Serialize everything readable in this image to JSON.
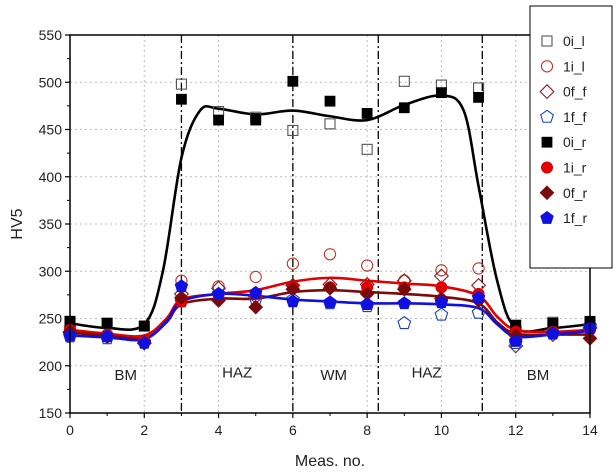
{
  "chart_data": {
    "type": "scatter",
    "title": "",
    "xlabel": "Meas. no.",
    "ylabel": "HV5",
    "xlim": [
      0,
      14
    ],
    "ylim": [
      150,
      550
    ],
    "xticks": [
      0,
      2,
      4,
      6,
      8,
      10,
      12,
      14
    ],
    "yticks": [
      150,
      200,
      250,
      300,
      350,
      400,
      450,
      500,
      550
    ],
    "grid": true,
    "legend_position": "top-right",
    "zone_boundaries": [
      3,
      6,
      8.3,
      11.1
    ],
    "zones": [
      {
        "label": "BM",
        "x": 1.5,
        "y": 190
      },
      {
        "label": "HAZ",
        "x": 4.5,
        "y": 193
      },
      {
        "label": "WM",
        "x": 7.1,
        "y": 190
      },
      {
        "label": "HAZ",
        "x": 9.6,
        "y": 193
      },
      {
        "label": "BM",
        "x": 12.6,
        "y": 190
      }
    ],
    "series": [
      {
        "name": "0i_l",
        "marker": "square",
        "filled": false,
        "color": "#555555",
        "x": [
          0,
          1,
          2,
          3,
          4,
          5,
          6,
          7,
          8,
          9,
          10,
          11,
          12,
          13,
          14
        ],
        "y": [
          247,
          245,
          242,
          498,
          469,
          463,
          449,
          456,
          429,
          501,
          497,
          494,
          242,
          246,
          246
        ]
      },
      {
        "name": "1i_l",
        "marker": "circle",
        "filled": false,
        "color": "#c0392b",
        "x": [
          0,
          1,
          2,
          3,
          4,
          5,
          6,
          7,
          8,
          9,
          10,
          11,
          12,
          13,
          14
        ],
        "y": [
          240,
          232,
          226,
          290,
          284,
          294,
          308,
          318,
          306,
          290,
          301,
          303,
          240,
          237,
          243
        ]
      },
      {
        "name": "0f_f",
        "marker": "diamond",
        "filled": false,
        "color": "#8b1a1a",
        "x": [
          0,
          1,
          2,
          3,
          4,
          5,
          6,
          7,
          8,
          9,
          10,
          11,
          12,
          13,
          14
        ],
        "y": [
          235,
          231,
          224,
          276,
          282,
          273,
          285,
          286,
          286,
          290,
          295,
          285,
          221,
          233,
          240
        ]
      },
      {
        "name": "1f_f",
        "marker": "pentagon",
        "filled": false,
        "color": "#1f3fbf",
        "x": [
          0,
          1,
          2,
          3,
          4,
          5,
          6,
          7,
          8,
          9,
          10,
          11,
          12,
          13,
          14
        ],
        "y": [
          231,
          229,
          225,
          268,
          275,
          270,
          270,
          266,
          263,
          245,
          254,
          256,
          224,
          234,
          242
        ]
      },
      {
        "name": "0i_r",
        "marker": "square",
        "filled": true,
        "color": "#000000",
        "x": [
          0,
          1,
          2,
          3,
          4,
          5,
          6,
          7,
          8,
          9,
          10,
          11,
          12,
          13,
          14
        ],
        "y": [
          247,
          245,
          242,
          482,
          460,
          460,
          501,
          480,
          467,
          473,
          489,
          484,
          243,
          245,
          247
        ]
      },
      {
        "name": "1i_r",
        "marker": "circle",
        "filled": true,
        "color": "#e00000",
        "x": [
          0,
          1,
          2,
          3,
          4,
          5,
          6,
          7,
          8,
          9,
          10,
          11,
          12,
          13,
          14
        ],
        "y": [
          238,
          233,
          227,
          268,
          275,
          276,
          284,
          283,
          283,
          283,
          283,
          276,
          236,
          236,
          238
        ]
      },
      {
        "name": "0f_r",
        "marker": "diamond",
        "filled": true,
        "color": "#7b0a0a",
        "x": [
          0,
          1,
          2,
          3,
          4,
          5,
          6,
          7,
          8,
          9,
          10,
          11,
          12,
          13,
          14
        ],
        "y": [
          236,
          231,
          224,
          272,
          269,
          262,
          281,
          282,
          276,
          281,
          271,
          269,
          232,
          235,
          229
        ]
      },
      {
        "name": "1f_r",
        "marker": "pentagon",
        "filled": true,
        "color": "#1010e0",
        "x": [
          0,
          1,
          2,
          3,
          4,
          5,
          6,
          7,
          8,
          9,
          10,
          11,
          12,
          13,
          14
        ],
        "y": [
          232,
          231,
          224,
          284,
          276,
          277,
          268,
          267,
          265,
          266,
          267,
          272,
          226,
          234,
          240
        ]
      }
    ],
    "fit_curves": [
      {
        "color": "#000000",
        "x": [
          0,
          1,
          2,
          2.5,
          3,
          3.5,
          4,
          5,
          6,
          7,
          8,
          9,
          10,
          10.6,
          11,
          11.5,
          12,
          13,
          14
        ],
        "y": [
          245,
          240,
          244,
          300,
          420,
          470,
          472,
          466,
          470,
          464,
          460,
          476,
          486,
          470,
          390,
          290,
          240,
          240,
          244
        ]
      },
      {
        "color": "#e00000",
        "x": [
          0,
          1,
          2,
          2.6,
          3,
          4,
          5,
          6,
          7,
          8,
          9,
          10,
          11,
          11.5,
          12,
          13,
          14
        ],
        "y": [
          238,
          234,
          232,
          250,
          270,
          276,
          280,
          289,
          293,
          290,
          287,
          284,
          274,
          252,
          238,
          236,
          238
        ]
      },
      {
        "color": "#7b0a0a",
        "x": [
          0,
          1,
          2,
          2.6,
          3,
          4,
          5,
          6,
          7,
          8,
          9,
          10,
          11,
          11.5,
          12,
          13,
          14
        ],
        "y": [
          235,
          232,
          229,
          246,
          265,
          271,
          271,
          278,
          280,
          278,
          276,
          273,
          266,
          246,
          234,
          233,
          233
        ]
      },
      {
        "color": "#1010e0",
        "x": [
          0,
          1,
          2,
          2.6,
          3,
          4,
          5,
          6,
          7,
          8,
          9,
          10,
          11,
          11.5,
          12,
          13,
          14
        ],
        "y": [
          232,
          230,
          228,
          247,
          268,
          276,
          274,
          270,
          268,
          266,
          266,
          265,
          261,
          244,
          231,
          233,
          237
        ]
      }
    ]
  }
}
